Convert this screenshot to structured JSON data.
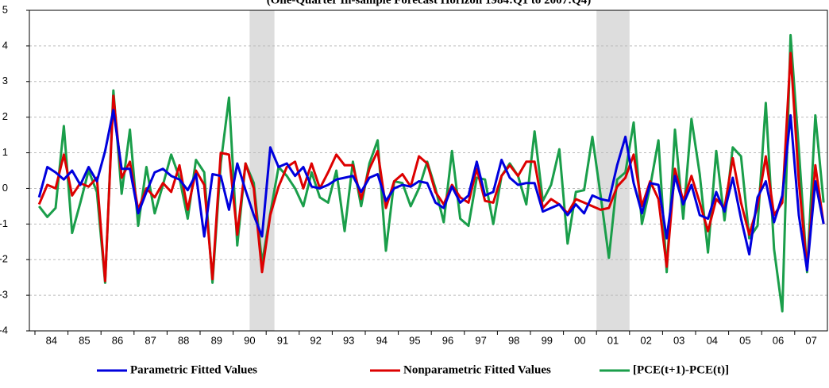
{
  "chart_data": {
    "type": "line",
    "title": "(One-Quarter In-sample Forecast Horizon 1984:Q1 to 2007:Q4)",
    "x_labels": [
      "84",
      "85",
      "86",
      "87",
      "88",
      "89",
      "90",
      "91",
      "92",
      "93",
      "94",
      "95",
      "96",
      "97",
      "98",
      "99",
      "00",
      "01",
      "02",
      "03",
      "04",
      "05",
      "06",
      "07"
    ],
    "ylim": [
      -4,
      5
    ],
    "yticks": [
      -4,
      -3,
      -2,
      -1,
      0,
      1,
      2,
      3,
      4,
      5
    ],
    "grid": true,
    "shaded": [
      [
        26,
        28
      ],
      [
        68,
        71
      ]
    ],
    "series": [
      {
        "name": "Parametric Fitted Values",
        "color": "#0000dd",
        "values": [
          -0.25,
          0.6,
          0.45,
          0.25,
          0.5,
          0.1,
          0.6,
          0.2,
          1.05,
          2.2,
          0.55,
          0.55,
          -0.7,
          -0.1,
          0.45,
          0.55,
          0.35,
          0.25,
          -0.05,
          0.4,
          -1.35,
          0.4,
          0.35,
          -0.6,
          0.7,
          -0.05,
          -0.75,
          -1.35,
          1.15,
          0.6,
          0.7,
          0.35,
          0.6,
          0.05,
          0.0,
          0.1,
          0.25,
          0.3,
          0.35,
          -0.1,
          0.3,
          0.4,
          -0.35,
          0.0,
          0.1,
          0.05,
          0.2,
          0.15,
          -0.4,
          -0.55,
          0.05,
          -0.4,
          -0.2,
          0.75,
          -0.2,
          -0.1,
          0.8,
          0.3,
          0.1,
          0.15,
          0.15,
          -0.65,
          -0.55,
          -0.45,
          -0.75,
          -0.45,
          -0.7,
          -0.2,
          -0.3,
          -0.35,
          0.65,
          1.45,
          0.15,
          -0.7,
          0.15,
          0.1,
          -1.4,
          0.35,
          -0.45,
          0.1,
          -0.75,
          -0.85,
          -0.1,
          -0.65,
          0.3,
          -0.85,
          -1.85,
          -0.25,
          0.2,
          -0.95,
          -0.2,
          2.05,
          -0.75,
          -2.3,
          0.2,
          -1.0
        ]
      },
      {
        "name": "Nonparametric Fitted Values",
        "color": "#dd0000",
        "values": [
          -0.45,
          0.1,
          0.0,
          0.95,
          -0.2,
          0.15,
          0.05,
          0.3,
          -2.6,
          2.6,
          0.3,
          0.75,
          -0.6,
          0.0,
          -0.25,
          0.15,
          -0.1,
          0.65,
          -0.6,
          0.5,
          0.1,
          -2.55,
          1.0,
          0.95,
          -1.3,
          0.7,
          0.0,
          -2.35,
          -0.75,
          0.05,
          0.6,
          0.75,
          0.0,
          0.7,
          0.0,
          0.45,
          0.95,
          0.65,
          0.65,
          -0.3,
          0.55,
          1.05,
          -0.55,
          0.2,
          0.4,
          0.05,
          0.9,
          0.7,
          -0.1,
          -0.45,
          0.1,
          -0.25,
          -0.4,
          0.55,
          -0.35,
          -0.4,
          0.35,
          0.65,
          0.35,
          0.75,
          0.75,
          -0.55,
          -0.3,
          -0.45,
          -0.7,
          -0.3,
          -0.4,
          -0.5,
          -0.6,
          -0.55,
          0.05,
          0.3,
          0.95,
          -0.5,
          0.2,
          -0.3,
          -2.2,
          0.55,
          -0.35,
          0.35,
          -0.4,
          -1.2,
          -0.3,
          -0.55,
          0.85,
          -0.4,
          -1.3,
          -0.5,
          0.9,
          -0.75,
          -0.4,
          3.8,
          0.2,
          -2.25,
          0.65,
          -1.0
        ]
      },
      {
        "name": "[PCE(t+1)-PCE(t)]",
        "color": "#1a9e4a",
        "values": [
          -0.5,
          -0.8,
          -0.55,
          1.75,
          -1.25,
          -0.4,
          0.5,
          -0.1,
          -2.65,
          2.75,
          -0.15,
          1.65,
          -1.05,
          0.6,
          -0.7,
          0.1,
          0.95,
          0.3,
          -0.85,
          0.8,
          0.45,
          -2.65,
          0.7,
          2.55,
          -1.6,
          0.7,
          0.15,
          -2.1,
          -0.7,
          0.6,
          0.35,
          0.0,
          -0.5,
          0.45,
          -0.25,
          -0.4,
          0.5,
          -1.2,
          0.75,
          -0.5,
          0.7,
          1.35,
          -1.75,
          0.2,
          0.15,
          -0.5,
          0.0,
          0.75,
          0.0,
          -0.95,
          1.05,
          -0.85,
          -1.05,
          0.3,
          0.25,
          -1.0,
          0.35,
          0.7,
          0.35,
          -0.45,
          1.6,
          -0.35,
          0.1,
          1.1,
          -1.55,
          -0.1,
          -0.05,
          1.45,
          -0.2,
          -1.95,
          0.25,
          0.45,
          1.85,
          -1.0,
          0.05,
          1.35,
          -2.35,
          1.65,
          -0.85,
          1.95,
          0.4,
          -1.8,
          1.05,
          -0.9,
          1.15,
          0.9,
          -1.4,
          -1.05,
          2.4,
          -1.7,
          -3.45,
          4.3,
          1.1,
          -2.35,
          2.05,
          -0.4
        ]
      }
    ]
  }
}
